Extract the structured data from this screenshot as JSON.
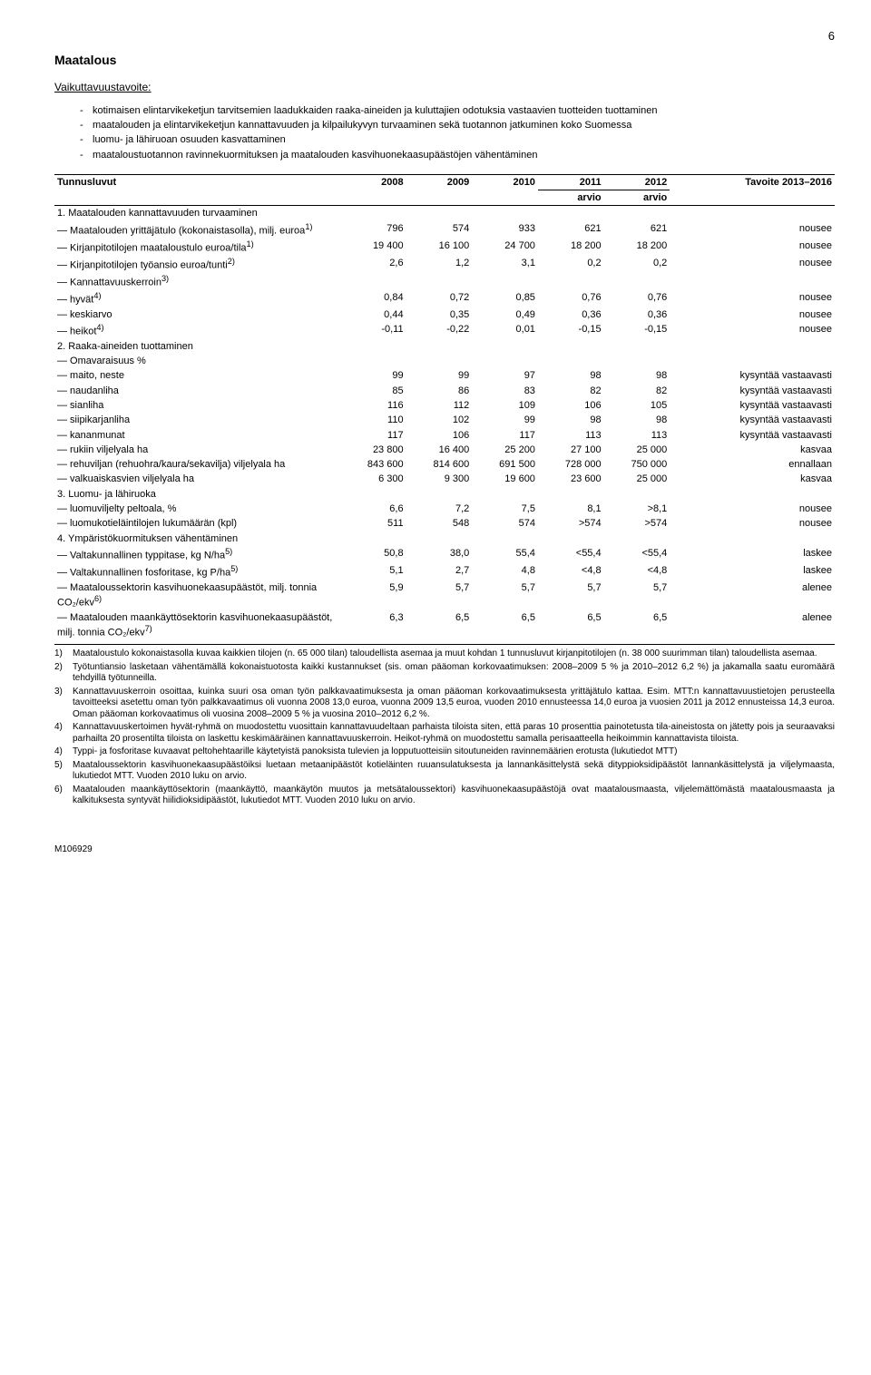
{
  "page_number": "6",
  "title": "Maatalous",
  "subhead": "Vaikuttavuustavoite:",
  "bullets": [
    "kotimaisen elintarvikeketjun tarvitsemien laadukkaiden raaka-aineiden ja kuluttajien odotuksia vastaavien tuotteiden tuottaminen",
    "maatalouden ja elintarvikeketjun kannattavuuden ja kilpailukyvyn turvaaminen sekä tuotannon jatkuminen koko Suomessa",
    "luomu- ja lähiruoan osuuden kasvattaminen",
    "maataloustuotannon ravinnekuormituksen ja maatalouden kasvihuonekaasupäästöjen vähentäminen"
  ],
  "table": {
    "header_left": "Tunnusluvut",
    "header_years": [
      "2008",
      "2009",
      "2010"
    ],
    "header_arvio_top": [
      "2011",
      "2012"
    ],
    "header_arvio_bot": "arvio",
    "header_target": "Tavoite 2013–2016",
    "sections": [
      {
        "title": "1. Maatalouden kannattavuuden turvaaminen",
        "rows": [
          {
            "label": "— Maatalouden yrittäjätulo (kokonaistasolla), milj. euroa",
            "sup": "1)",
            "cells": [
              "796",
              "574",
              "933",
              "621",
              "621",
              "nousee"
            ]
          },
          {
            "label": "— Kirjanpitotilojen maataloustulo euroa/tila",
            "sup": "1)",
            "cells": [
              "19 400",
              "16 100",
              "24 700",
              "18 200",
              "18 200",
              "nousee"
            ]
          },
          {
            "label": "— Kirjanpitotilojen työansio euroa/tunti",
            "sup": "2)",
            "cells": [
              "2,6",
              "1,2",
              "3,1",
              "0,2",
              "0,2",
              "nousee"
            ]
          },
          {
            "label": "— Kannattavuuskerroin",
            "sup": "3)",
            "cells": [
              "",
              "",
              "",
              "",
              "",
              ""
            ]
          },
          {
            "label": "— hyvät",
            "sup": "4)",
            "cells": [
              "0,84",
              "0,72",
              "0,85",
              "0,76",
              "0,76",
              "nousee"
            ]
          },
          {
            "label": "— keskiarvo",
            "cells": [
              "0,44",
              "0,35",
              "0,49",
              "0,36",
              "0,36",
              "nousee"
            ]
          },
          {
            "label": "— heikot",
            "sup": "4)",
            "cells": [
              "-0,11",
              "-0,22",
              "0,01",
              "-0,15",
              "-0,15",
              "nousee"
            ]
          }
        ]
      },
      {
        "title": "2. Raaka-aineiden tuottaminen",
        "rows": [
          {
            "label": "— Omavaraisuus %",
            "cells": [
              "",
              "",
              "",
              "",
              "",
              ""
            ]
          },
          {
            "label": "— maito, neste",
            "cells": [
              "99",
              "99",
              "97",
              "98",
              "98",
              "kysyntää vastaavasti"
            ]
          },
          {
            "label": "— naudanliha",
            "cells": [
              "85",
              "86",
              "83",
              "82",
              "82",
              "kysyntää vastaavasti"
            ]
          },
          {
            "label": "— sianliha",
            "cells": [
              "116",
              "112",
              "109",
              "106",
              "105",
              "kysyntää vastaavasti"
            ]
          },
          {
            "label": "— siipikarjanliha",
            "cells": [
              "110",
              "102",
              "99",
              "98",
              "98",
              "kysyntää vastaavasti"
            ]
          },
          {
            "label": "— kananmunat",
            "cells": [
              "117",
              "106",
              "117",
              "113",
              "113",
              "kysyntää vastaavasti"
            ]
          },
          {
            "label": "— rukiin viljelyala ha",
            "cells": [
              "23 800",
              "16 400",
              "25 200",
              "27 100",
              "25 000",
              "kasvaa"
            ]
          },
          {
            "label": "— rehuviljan (rehuohra/kaura/sekavilja) viljelyala ha",
            "cells": [
              "843 600",
              "814 600",
              "691 500",
              "728 000",
              "750 000",
              "ennallaan"
            ]
          },
          {
            "label": "— valkuaiskasvien viljelyala ha",
            "cells": [
              "6 300",
              "9 300",
              "19 600",
              "23 600",
              "25 000",
              "kasvaa"
            ]
          }
        ]
      },
      {
        "title": "3. Luomu- ja lähiruoka",
        "rows": [
          {
            "label": "— luomuviljelty peltoala, %",
            "cells": [
              "6,6",
              "7,2",
              "7,5",
              "8,1",
              ">8,1",
              "nousee"
            ]
          },
          {
            "label": "— luomukotieläintilojen lukumäärän (kpl)",
            "cells": [
              "511",
              "548",
              "574",
              ">574",
              ">574",
              "nousee"
            ]
          }
        ]
      },
      {
        "title": "4. Ympäristökuormituksen vähentäminen",
        "rows": [
          {
            "label": "— Valtakunnallinen typpitase, kg N/ha",
            "sup": "5)",
            "cells": [
              "50,8",
              "38,0",
              "55,4",
              "<55,4",
              "<55,4",
              "laskee"
            ]
          },
          {
            "label": "— Valtakunnallinen fosforitase, kg P/ha",
            "sup": "5)",
            "cells": [
              "5,1",
              "2,7",
              "4,8",
              "<4,8",
              "<4,8",
              "laskee"
            ]
          },
          {
            "label": "— Maataloussektorin kasvihuonekaasupäästöt, milj. tonnia CO₂/ekv",
            "sup": "6)",
            "cells": [
              "5,9",
              "5,7",
              "5,7",
              "5,7",
              "5,7",
              "alenee"
            ]
          },
          {
            "label": "— Maatalouden maankäyttösektorin kasvihuonekaasupäästöt, milj. tonnia CO₂/ekv",
            "sup": "7)",
            "cells": [
              "6,3",
              "6,5",
              "6,5",
              "6,5",
              "6,5",
              "alenee"
            ]
          }
        ]
      }
    ]
  },
  "footnotes": [
    {
      "n": "1)",
      "t": "Maataloustulo kokonaistasolla kuvaa kaikkien tilojen (n. 65 000 tilan) taloudellista asemaa ja muut kohdan 1 tunnusluvut kirjanpitotilojen (n. 38 000 suurimman tilan) taloudellista asemaa."
    },
    {
      "n": "2)",
      "t": "Työtuntiansio lasketaan vähentämällä kokonaistuotosta kaikki kustannukset (sis. oman pääoman korkovaatimuksen: 2008–2009 5 % ja 2010–2012 6,2 %) ja jakamalla saatu euromäärä tehdyillä työtunneilla."
    },
    {
      "n": "3)",
      "t": "Kannattavuuskerroin osoittaa, kuinka suuri osa oman työn palkkavaatimuksesta ja oman pääoman korkovaatimuksesta yrittäjätulo kattaa. Esim. MTT:n kannattavuustietojen perusteella tavoitteeksi asetettu oman työn palkkavaatimus oli vuonna 2008 13,0 euroa, vuonna 2009 13,5 euroa, vuoden 2010 ennusteessa 14,0 euroa ja vuosien 2011 ja 2012 ennusteissa 14,3 euroa. Oman pääoman korkovaatimus oli vuosina 2008–2009 5 % ja vuosina 2010–2012 6,2 %."
    },
    {
      "n": "4)",
      "t": "Kannattavuuskertoimen hyvät-ryhmä on muodostettu vuosittain kannattavuudeltaan parhaista tiloista siten, että paras 10 prosenttia painotetusta tila-aineistosta on jätetty pois ja seuraavaksi parhailta 20 prosentilta tiloista on laskettu keskimääräinen kannattavuuskerroin. Heikot-ryhmä on muodostettu samalla perisaatteella heikoimmin kannattavista tiloista."
    },
    {
      "n": "4)",
      "t": "Typpi- ja fosforitase kuvaavat peltohehtaarille käytetyistä panoksista tulevien ja lopputuotteisiin sitoutuneiden ravinnemäärien erotusta (lukutiedot MTT)"
    },
    {
      "n": "5)",
      "t": "Maataloussektorin kasvihuonekaasupäästöiksi luetaan metaanipäästöt kotieläinten ruuansulatuksesta ja lannankäsittelystä sekä dityppioksidipäästöt lannankäsittelystä ja viljelymaasta, lukutiedot MTT. Vuoden 2010 luku on arvio."
    },
    {
      "n": "6)",
      "t": "Maatalouden maankäyttösektorin (maankäyttö, maankäytön muutos ja metsätaloussektori) kasvihuonekaasupäästöjä ovat maatalousmaasta, viljelemättömästä maatalousmaasta ja kalkituksesta syntyvät hiilidioksidipäästöt, lukutiedot MTT. Vuoden 2010 luku on arvio."
    }
  ],
  "doc_id": "M106929"
}
